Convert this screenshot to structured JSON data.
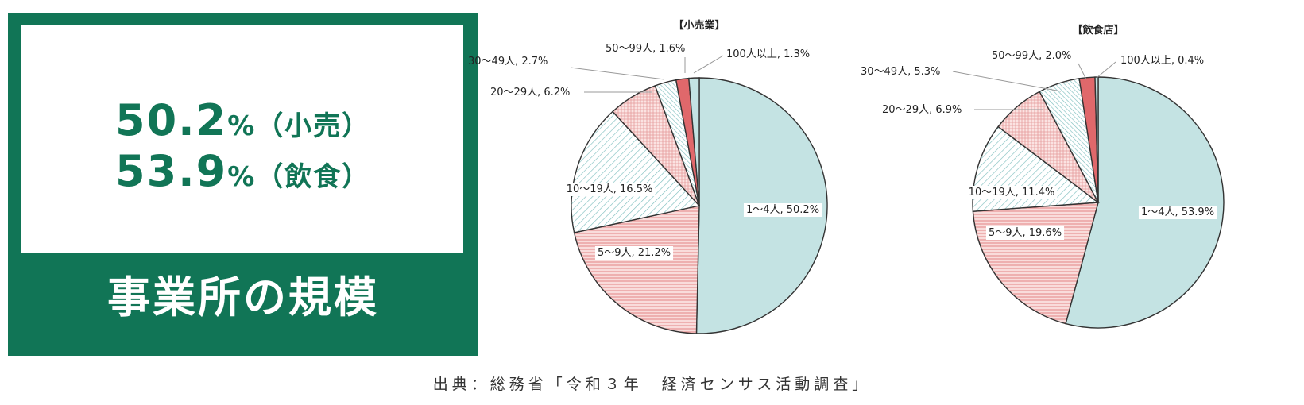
{
  "summary": {
    "retail_percent": "50.2",
    "retail_suffix": "%（小売）",
    "food_percent": "53.9",
    "food_suffix": "%（飲食）",
    "title": "事業所の規模"
  },
  "colors": {
    "brand_green": "#117556",
    "size_1_4": "#c4e3e3",
    "size_5_9": "#f4c4c2",
    "size_10_19": "#e9f4f4",
    "size_20_29": "#f6d7d6",
    "size_30_49": "#d3ecec",
    "size_50_99": "#e0686b",
    "size_100plus": "#c4e3e3"
  },
  "chart_data": [
    {
      "type": "pie",
      "title": "【小売業】",
      "categories": [
        "1～4人",
        "5～9人",
        "10～19人",
        "20～29人",
        "30～49人",
        "50～99人",
        "100人以上"
      ],
      "values": [
        50.2,
        21.2,
        16.5,
        6.2,
        2.7,
        1.6,
        1.3
      ],
      "labels": [
        "1～4人, 50.2%",
        "5～9人, 21.2%",
        "10～19人, 16.5%",
        "20～29人, 6.2%",
        "30～49人, 2.7%",
        "50～99人, 1.6%",
        "100人以上, 1.3%"
      ]
    },
    {
      "type": "pie",
      "title": "【飲食店】",
      "categories": [
        "1～4人",
        "5～9人",
        "10～19人",
        "20～29人",
        "30～49人",
        "50～99人",
        "100人以上"
      ],
      "values": [
        53.9,
        19.6,
        11.4,
        6.9,
        5.3,
        2.0,
        0.4
      ],
      "labels": [
        "1～4人, 53.9%",
        "5～9人, 19.6%",
        "10～19人, 11.4%",
        "20～29人, 6.9%",
        "30～49人, 5.3%",
        "50～99人, 2.0%",
        "100人以上, 0.4%"
      ]
    }
  ],
  "source": "出典：総務省「令和３年　経済センサス活動調査」"
}
